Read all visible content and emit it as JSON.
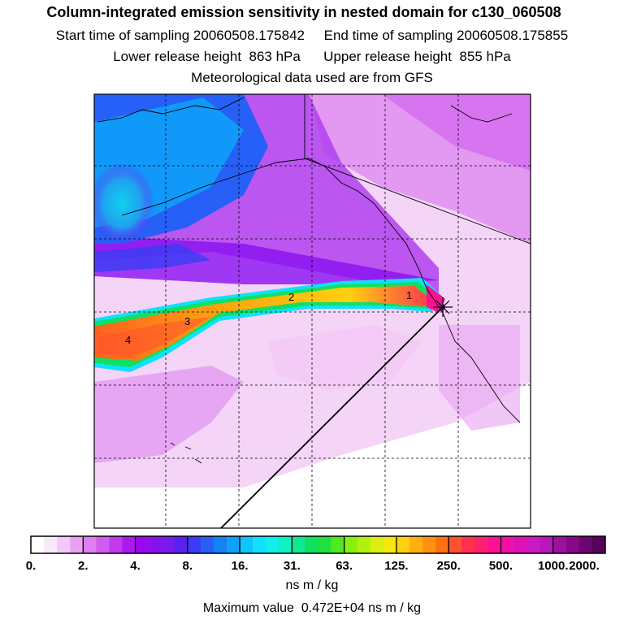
{
  "header": {
    "title": "Column-integrated emission sensitivity in nested domain for c130_060508",
    "sampling_line": "Start time of sampling 20060508.175842     End time of sampling 20060508.175855",
    "release_line": "Lower release height  863 hPa      Upper release height  855 hPa",
    "met_line": "Meteorological data used are from GFS"
  },
  "map": {
    "plume_labels": [
      "1",
      "2",
      "3",
      "4"
    ],
    "gridlines": "on"
  },
  "colorbar": {
    "tick_labels": [
      "0.",
      "2.",
      "4.",
      "8.",
      "16.",
      "31.",
      "63.",
      "125.",
      "250.",
      "500.",
      "1000.",
      "2000."
    ],
    "colors": [
      "#ffffff",
      "#fbe8fb",
      "#f3c8f6",
      "#e8a2f2",
      "#dc7ff0",
      "#cf5cef",
      "#c13aee",
      "#ae18ee",
      "#9a08f0",
      "#8a10f0",
      "#7a1af0",
      "#5a20f0",
      "#3a3cf4",
      "#2660f6",
      "#1680f8",
      "#10a0fa",
      "#10c4fc",
      "#10e0fe",
      "#10f0e8",
      "#10f0c0",
      "#10e890",
      "#10e060",
      "#20e040",
      "#50e820",
      "#88f010",
      "#b0f010",
      "#d8f010",
      "#f4e810",
      "#ffd010",
      "#ffb010",
      "#ff9010",
      "#ff7010",
      "#ff5030",
      "#ff3050",
      "#ff2070",
      "#ff1090",
      "#f010a8",
      "#e010b8",
      "#cc18c0",
      "#b818b8",
      "#a010a0",
      "#880888",
      "#6e0470",
      "#560258"
    ],
    "unit": "ns m / kg"
  },
  "footer": {
    "max_label": "Maximum value",
    "max_value": "0.472E+04",
    "max_unit": "ns m / kg"
  }
}
